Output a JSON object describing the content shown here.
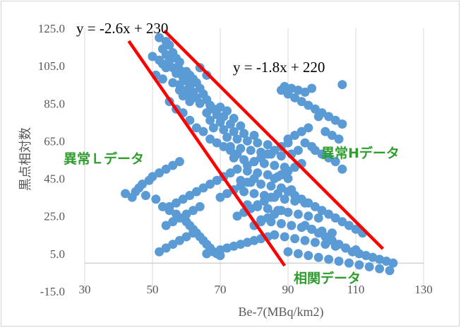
{
  "chart_data": {
    "type": "scatter",
    "xlabel": "Be-7(MBq/km2)",
    "ylabel": "黒点相対数",
    "xlim": [
      30,
      130
    ],
    "ylim": [
      -15,
      125
    ],
    "xticks": [
      "30",
      "50",
      "70",
      "90",
      "110",
      "130"
    ],
    "yticks": [
      "-15.0",
      "5.0",
      "25.0",
      "45.0",
      "65.0",
      "85.0",
      "105.0",
      "125.0"
    ],
    "grid": "vertical",
    "point_color": "#5b9bd5",
    "line_color": "#ff0000",
    "annotation_color": "#2e9e2e",
    "lines": [
      {
        "equation": "y = -2.6x + 230",
        "slope": -2.6,
        "intercept": 230,
        "x_range": [
          43,
          89
        ]
      },
      {
        "equation": "y = -1.8x + 220",
        "slope": -1.8,
        "intercept": 220,
        "x_range": [
          53.5,
          118
        ]
      }
    ],
    "annotations": [
      {
        "text": "異常Ｌデータ"
      },
      {
        "text": "異常Hデータ"
      },
      {
        "text": "相関データ"
      }
    ],
    "points": [
      [
        52,
        120
      ],
      [
        54,
        118
      ],
      [
        55,
        116
      ],
      [
        53,
        114
      ],
      [
        56,
        112
      ],
      [
        54,
        111
      ],
      [
        57,
        109
      ],
      [
        55,
        108
      ],
      [
        58,
        107
      ],
      [
        53,
        106
      ],
      [
        56,
        104
      ],
      [
        58,
        103
      ],
      [
        60,
        102
      ],
      [
        57,
        101
      ],
      [
        61,
        100
      ],
      [
        59,
        99
      ],
      [
        62,
        98
      ],
      [
        60,
        97
      ],
      [
        63,
        96
      ],
      [
        58,
        95
      ],
      [
        61,
        94
      ],
      [
        64,
        93
      ],
      [
        60,
        92
      ],
      [
        62,
        91
      ],
      [
        65,
        90
      ],
      [
        59,
        89
      ],
      [
        63,
        88
      ],
      [
        66,
        87
      ],
      [
        61,
        86
      ],
      [
        64,
        85
      ],
      [
        67,
        84
      ],
      [
        70,
        83
      ],
      [
        68,
        82
      ],
      [
        72,
        81
      ],
      [
        66,
        80
      ],
      [
        69,
        79
      ],
      [
        71,
        78
      ],
      [
        74,
        77
      ],
      [
        67,
        76
      ],
      [
        70,
        75
      ],
      [
        73,
        74
      ],
      [
        76,
        73
      ],
      [
        68,
        72
      ],
      [
        71,
        71
      ],
      [
        74,
        70
      ],
      [
        77,
        69
      ],
      [
        80,
        68
      ],
      [
        72,
        67
      ],
      [
        75,
        66
      ],
      [
        78,
        65
      ],
      [
        81,
        64
      ],
      [
        84,
        63
      ],
      [
        73,
        62
      ],
      [
        76,
        61
      ],
      [
        79,
        60
      ],
      [
        82,
        59
      ],
      [
        85,
        58
      ],
      [
        88,
        57
      ],
      [
        74,
        56
      ],
      [
        77,
        55
      ],
      [
        80,
        54
      ],
      [
        83,
        53
      ],
      [
        86,
        52
      ],
      [
        89,
        51
      ],
      [
        75,
        50
      ],
      [
        78,
        49
      ],
      [
        81,
        48
      ],
      [
        84,
        47
      ],
      [
        87,
        46
      ],
      [
        90,
        45
      ],
      [
        76,
        44
      ],
      [
        79,
        43
      ],
      [
        82,
        42
      ],
      [
        85,
        41
      ],
      [
        88,
        40
      ],
      [
        91,
        39
      ],
      [
        77,
        38
      ],
      [
        80,
        37
      ],
      [
        83,
        36
      ],
      [
        86,
        35
      ],
      [
        89,
        34
      ],
      [
        92,
        33
      ],
      [
        95,
        32
      ],
      [
        78,
        31
      ],
      [
        81,
        30
      ],
      [
        84,
        29
      ],
      [
        87,
        28
      ],
      [
        90,
        27
      ],
      [
        93,
        26
      ],
      [
        96,
        25
      ],
      [
        99,
        24
      ],
      [
        82,
        23
      ],
      [
        85,
        22
      ],
      [
        88,
        21
      ],
      [
        91,
        20
      ],
      [
        94,
        19
      ],
      [
        97,
        18
      ],
      [
        100,
        17
      ],
      [
        103,
        16
      ],
      [
        86,
        15
      ],
      [
        89,
        14
      ],
      [
        92,
        13
      ],
      [
        95,
        12
      ],
      [
        98,
        11
      ],
      [
        101,
        10
      ],
      [
        104,
        9
      ],
      [
        107,
        8
      ],
      [
        110,
        7
      ],
      [
        90,
        6
      ],
      [
        93,
        5
      ],
      [
        96,
        4
      ],
      [
        99,
        3
      ],
      [
        102,
        2
      ],
      [
        105,
        1
      ],
      [
        108,
        0
      ],
      [
        111,
        -1
      ],
      [
        114,
        -2
      ],
      [
        117,
        -3
      ],
      [
        120,
        -4
      ],
      [
        50,
        110
      ],
      [
        52,
        108
      ],
      [
        54,
        104
      ],
      [
        51,
        100
      ],
      [
        53,
        98
      ],
      [
        56,
        96
      ],
      [
        58,
        92
      ],
      [
        60,
        90
      ],
      [
        62,
        88
      ],
      [
        64,
        104
      ],
      [
        66,
        100
      ],
      [
        55,
        86
      ],
      [
        57,
        82
      ],
      [
        59,
        80
      ],
      [
        61,
        76
      ],
      [
        63,
        72
      ],
      [
        65,
        70
      ],
      [
        67,
        66
      ],
      [
        69,
        64
      ],
      [
        71,
        62
      ],
      [
        73,
        60
      ],
      [
        75,
        58
      ],
      [
        42,
        37
      ],
      [
        44,
        35
      ],
      [
        45,
        38
      ],
      [
        46,
        40
      ],
      [
        47,
        42
      ],
      [
        48,
        36
      ],
      [
        49,
        44
      ],
      [
        50,
        46
      ],
      [
        51,
        34
      ],
      [
        52,
        48
      ],
      [
        53,
        30
      ],
      [
        54,
        50
      ],
      [
        55,
        28
      ],
      [
        56,
        52
      ],
      [
        57,
        26
      ],
      [
        58,
        54
      ],
      [
        59,
        24
      ],
      [
        60,
        22
      ],
      [
        61,
        20
      ],
      [
        62,
        18
      ],
      [
        63,
        16
      ],
      [
        64,
        14
      ],
      [
        65,
        12
      ],
      [
        66,
        10
      ],
      [
        67,
        8
      ],
      [
        68,
        6
      ],
      [
        69,
        5
      ],
      [
        70,
        4
      ],
      [
        52,
        6
      ],
      [
        54,
        8
      ],
      [
        56,
        10
      ],
      [
        58,
        12
      ],
      [
        60,
        14
      ],
      [
        62,
        16
      ],
      [
        55,
        30
      ],
      [
        57,
        32
      ],
      [
        59,
        34
      ],
      [
        61,
        36
      ],
      [
        63,
        38
      ],
      [
        65,
        40
      ],
      [
        67,
        42
      ],
      [
        69,
        44
      ],
      [
        71,
        46
      ],
      [
        73,
        48
      ],
      [
        54,
        20
      ],
      [
        56,
        22
      ],
      [
        58,
        24
      ],
      [
        60,
        26
      ],
      [
        62,
        28
      ],
      [
        64,
        30
      ],
      [
        88,
        92
      ],
      [
        90,
        90
      ],
      [
        92,
        88
      ],
      [
        94,
        86
      ],
      [
        96,
        84
      ],
      [
        98,
        82
      ],
      [
        100,
        80
      ],
      [
        102,
        78
      ],
      [
        104,
        76
      ],
      [
        106,
        74
      ],
      [
        89,
        94
      ],
      [
        91,
        93
      ],
      [
        93,
        92
      ],
      [
        95,
        91
      ],
      [
        97,
        93
      ],
      [
        106,
        95
      ],
      [
        99,
        78
      ],
      [
        101,
        70
      ],
      [
        103,
        68
      ],
      [
        105,
        66
      ],
      [
        96,
        72
      ],
      [
        94,
        70
      ],
      [
        92,
        68
      ],
      [
        90,
        66
      ],
      [
        98,
        60
      ],
      [
        100,
        58
      ],
      [
        102,
        56
      ],
      [
        104,
        54
      ],
      [
        106,
        50
      ],
      [
        95,
        64
      ],
      [
        97,
        62
      ],
      [
        93,
        60
      ],
      [
        91,
        58
      ],
      [
        110,
        18
      ],
      [
        112,
        16
      ],
      [
        108,
        20
      ],
      [
        106,
        22
      ],
      [
        104,
        24
      ],
      [
        102,
        26
      ],
      [
        100,
        28
      ],
      [
        98,
        30
      ],
      [
        96,
        32
      ],
      [
        94,
        34
      ],
      [
        92,
        36
      ],
      [
        90,
        38
      ],
      [
        111,
        5
      ],
      [
        113,
        4
      ],
      [
        115,
        3
      ],
      [
        117,
        2
      ],
      [
        119,
        1
      ],
      [
        121,
        0
      ],
      [
        109,
        6
      ],
      [
        107,
        8
      ],
      [
        105,
        10
      ],
      [
        103,
        12
      ],
      [
        101,
        14
      ],
      [
        99,
        16
      ],
      [
        97,
        18
      ],
      [
        95,
        20
      ],
      [
        66,
        5
      ],
      [
        68,
        6
      ],
      [
        70,
        7
      ],
      [
        72,
        8
      ],
      [
        74,
        9
      ],
      [
        76,
        10
      ],
      [
        78,
        11
      ],
      [
        80,
        12
      ],
      [
        82,
        13
      ],
      [
        84,
        14
      ],
      [
        86,
        15
      ],
      [
        75,
        25
      ],
      [
        77,
        27
      ],
      [
        79,
        29
      ],
      [
        81,
        31
      ],
      [
        83,
        33
      ],
      [
        85,
        35
      ],
      [
        87,
        37
      ],
      [
        80,
        20
      ],
      [
        82,
        22
      ],
      [
        84,
        24
      ],
      [
        86,
        26
      ],
      [
        88,
        28
      ],
      [
        70,
        35
      ],
      [
        72,
        37
      ],
      [
        74,
        39
      ],
      [
        76,
        41
      ],
      [
        78,
        43
      ],
      [
        80,
        45
      ],
      [
        78,
        52
      ],
      [
        80,
        54
      ],
      [
        82,
        56
      ],
      [
        84,
        58
      ],
      [
        86,
        60
      ],
      [
        88,
        62
      ],
      [
        90,
        64
      ],
      [
        86,
        45
      ],
      [
        88,
        47
      ],
      [
        90,
        49
      ],
      [
        92,
        51
      ],
      [
        94,
        53
      ]
    ]
  }
}
